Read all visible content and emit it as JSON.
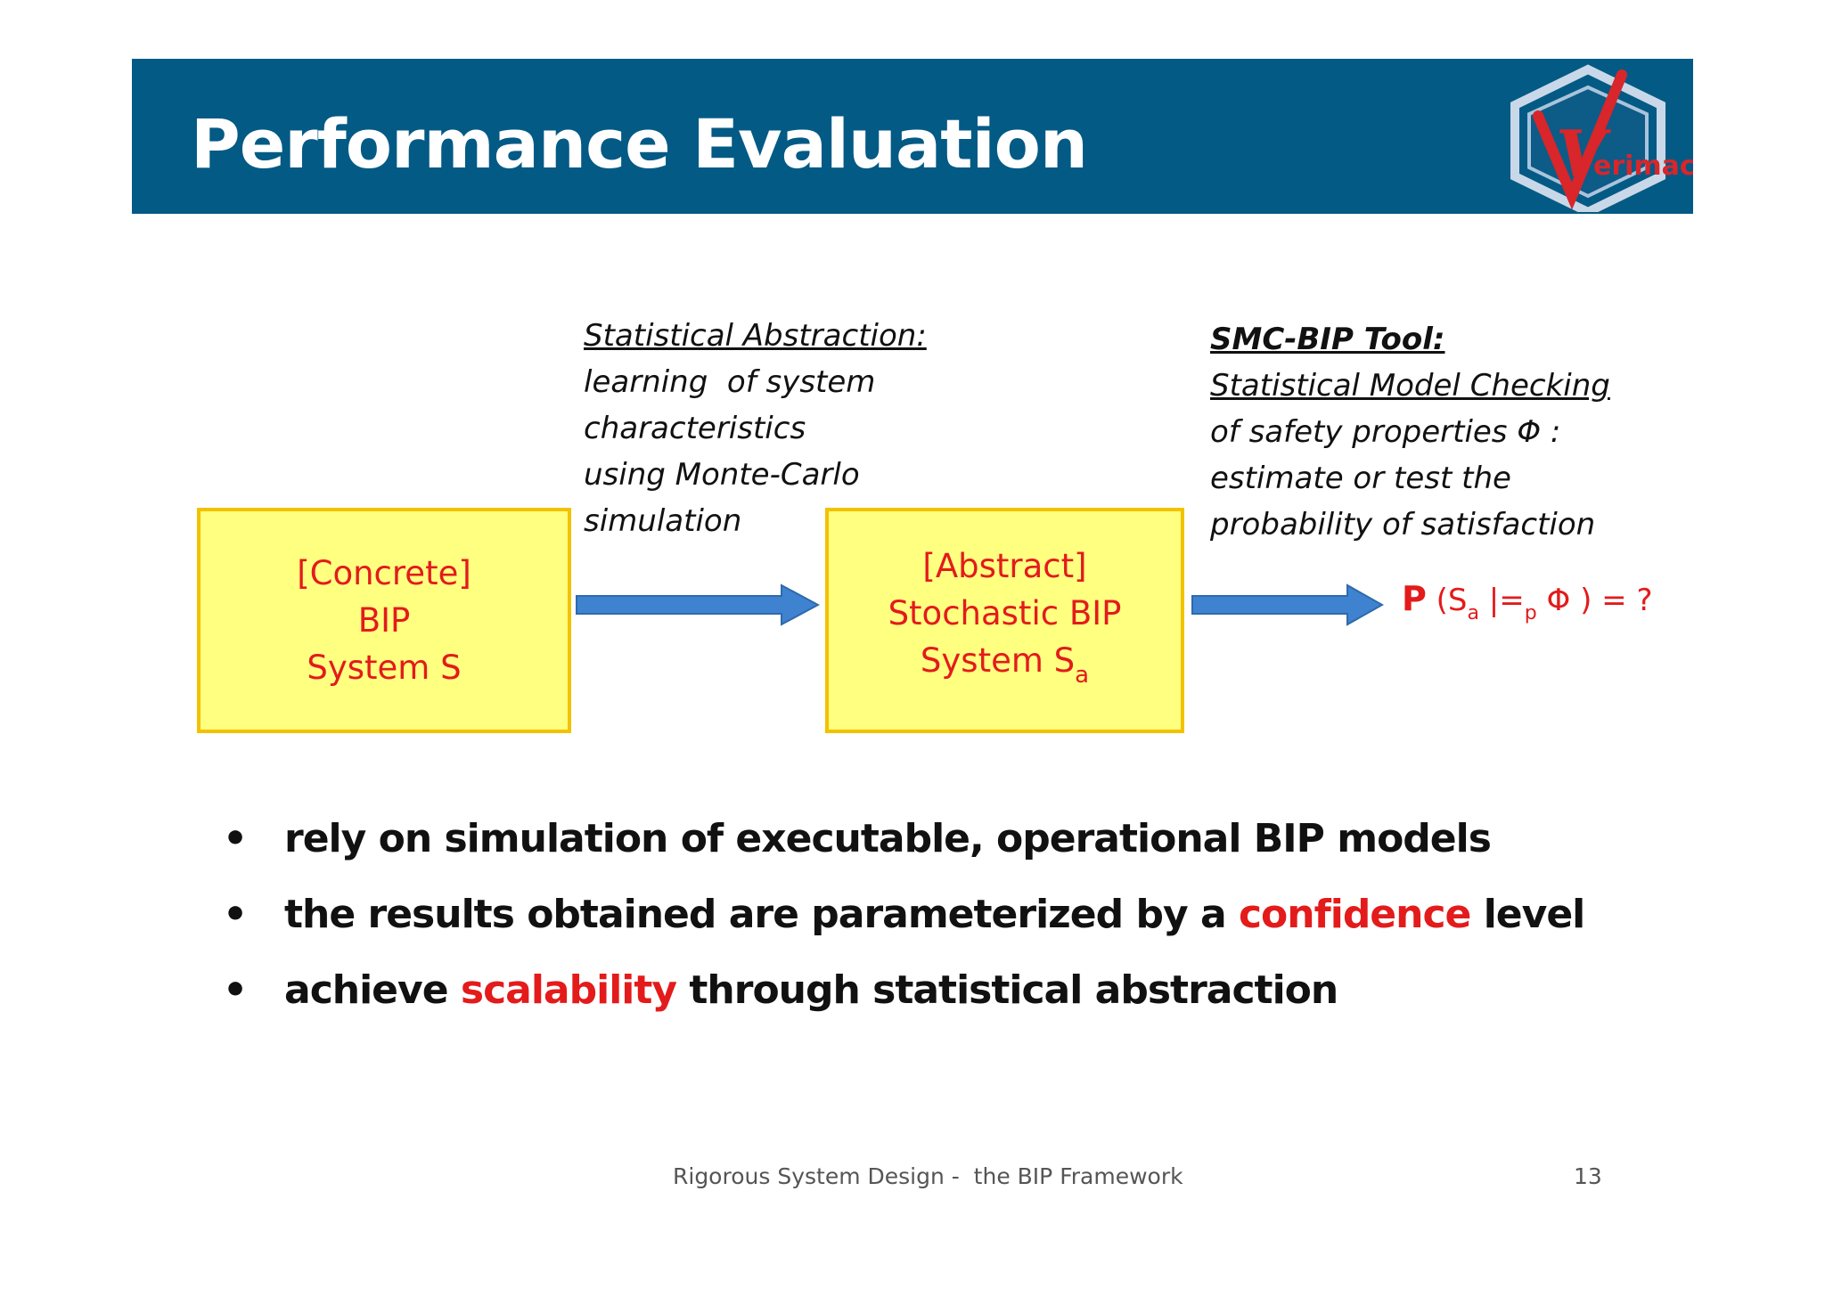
{
  "title": "Performance Evaluation",
  "logo": {
    "text": "erimac",
    "letter": "V"
  },
  "colors": {
    "header_bg": "#035a85",
    "accent_red": "#e31b1b",
    "box_fill": "#ffff80",
    "box_border": "#f2c200",
    "arrow_blue": "#3f82cf"
  },
  "box_concrete": {
    "line1": "[Concrete]",
    "line2": "BIP",
    "line3": "System S"
  },
  "box_abstract": {
    "line1": "[Abstract]",
    "line2": "Stochastic BIP",
    "line3_main": "System S",
    "line3_sub": "a"
  },
  "annotation_left": {
    "heading": "Statistical Abstraction:",
    "line1": "learning  of system",
    "line2": "characteristics",
    "line3": "using Monte-Carlo",
    "line4": "simulation"
  },
  "annotation_right": {
    "heading": "SMC-BIP Tool:",
    "line1": "Statistical Model Checking",
    "line2": "of safety properties Φ :",
    "line3": "estimate or test the",
    "line4": "probability of satisfaction"
  },
  "probability": {
    "p": "P",
    "open": " (S",
    "sub_a": "a",
    "models": " |=",
    "sub_p": "p",
    "rest": " Φ ) = ?"
  },
  "bullets": [
    {
      "dot": "•",
      "before": "rely on simulation of executable, operational BIP models",
      "highlight": "",
      "after": ""
    },
    {
      "dot": "•",
      "before": "the results obtained are parameterized by a ",
      "highlight": "confidence",
      "after": " level"
    },
    {
      "dot": "•",
      "before": "achieve ",
      "highlight": "scalability",
      "after": " through statistical abstraction"
    }
  ],
  "footer": {
    "left": "Rigorous System Design -  the BIP Framework",
    "page": "13"
  }
}
